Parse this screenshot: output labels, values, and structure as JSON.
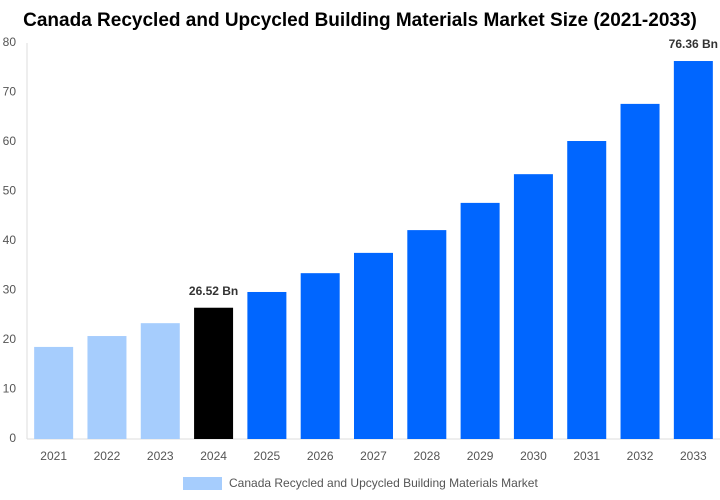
{
  "chart_data": {
    "type": "bar",
    "title": "Canada Recycled and Upcycled Building Materials Market Size (2021-2033)",
    "categories": [
      "2021",
      "2022",
      "2023",
      "2024",
      "2025",
      "2026",
      "2027",
      "2028",
      "2029",
      "2030",
      "2031",
      "2032",
      "2033"
    ],
    "series": [
      {
        "name": "Canada Recycled and Upcycled Building Materials Market",
        "color": "#a6cdfd",
        "values": [
          18.6,
          20.8,
          23.4,
          26.52,
          29.7,
          33.5,
          37.6,
          42.2,
          47.7,
          53.5,
          60.2,
          67.7,
          76.36
        ],
        "colors": [
          "#a6cdfd",
          "#a6cdfd",
          "#a6cdfd",
          "#000000",
          "#0066ff",
          "#0066ff",
          "#0066ff",
          "#0066ff",
          "#0066ff",
          "#0066ff",
          "#0066ff",
          "#0066ff",
          "#0066ff"
        ],
        "value_labels": [
          null,
          null,
          null,
          "26.52 Bn",
          null,
          null,
          null,
          null,
          null,
          null,
          null,
          null,
          "76.36 Bn"
        ]
      }
    ],
    "ylim": [
      0,
      80
    ],
    "yticks": [
      0,
      10,
      20,
      30,
      40,
      50,
      60,
      70,
      80
    ]
  }
}
